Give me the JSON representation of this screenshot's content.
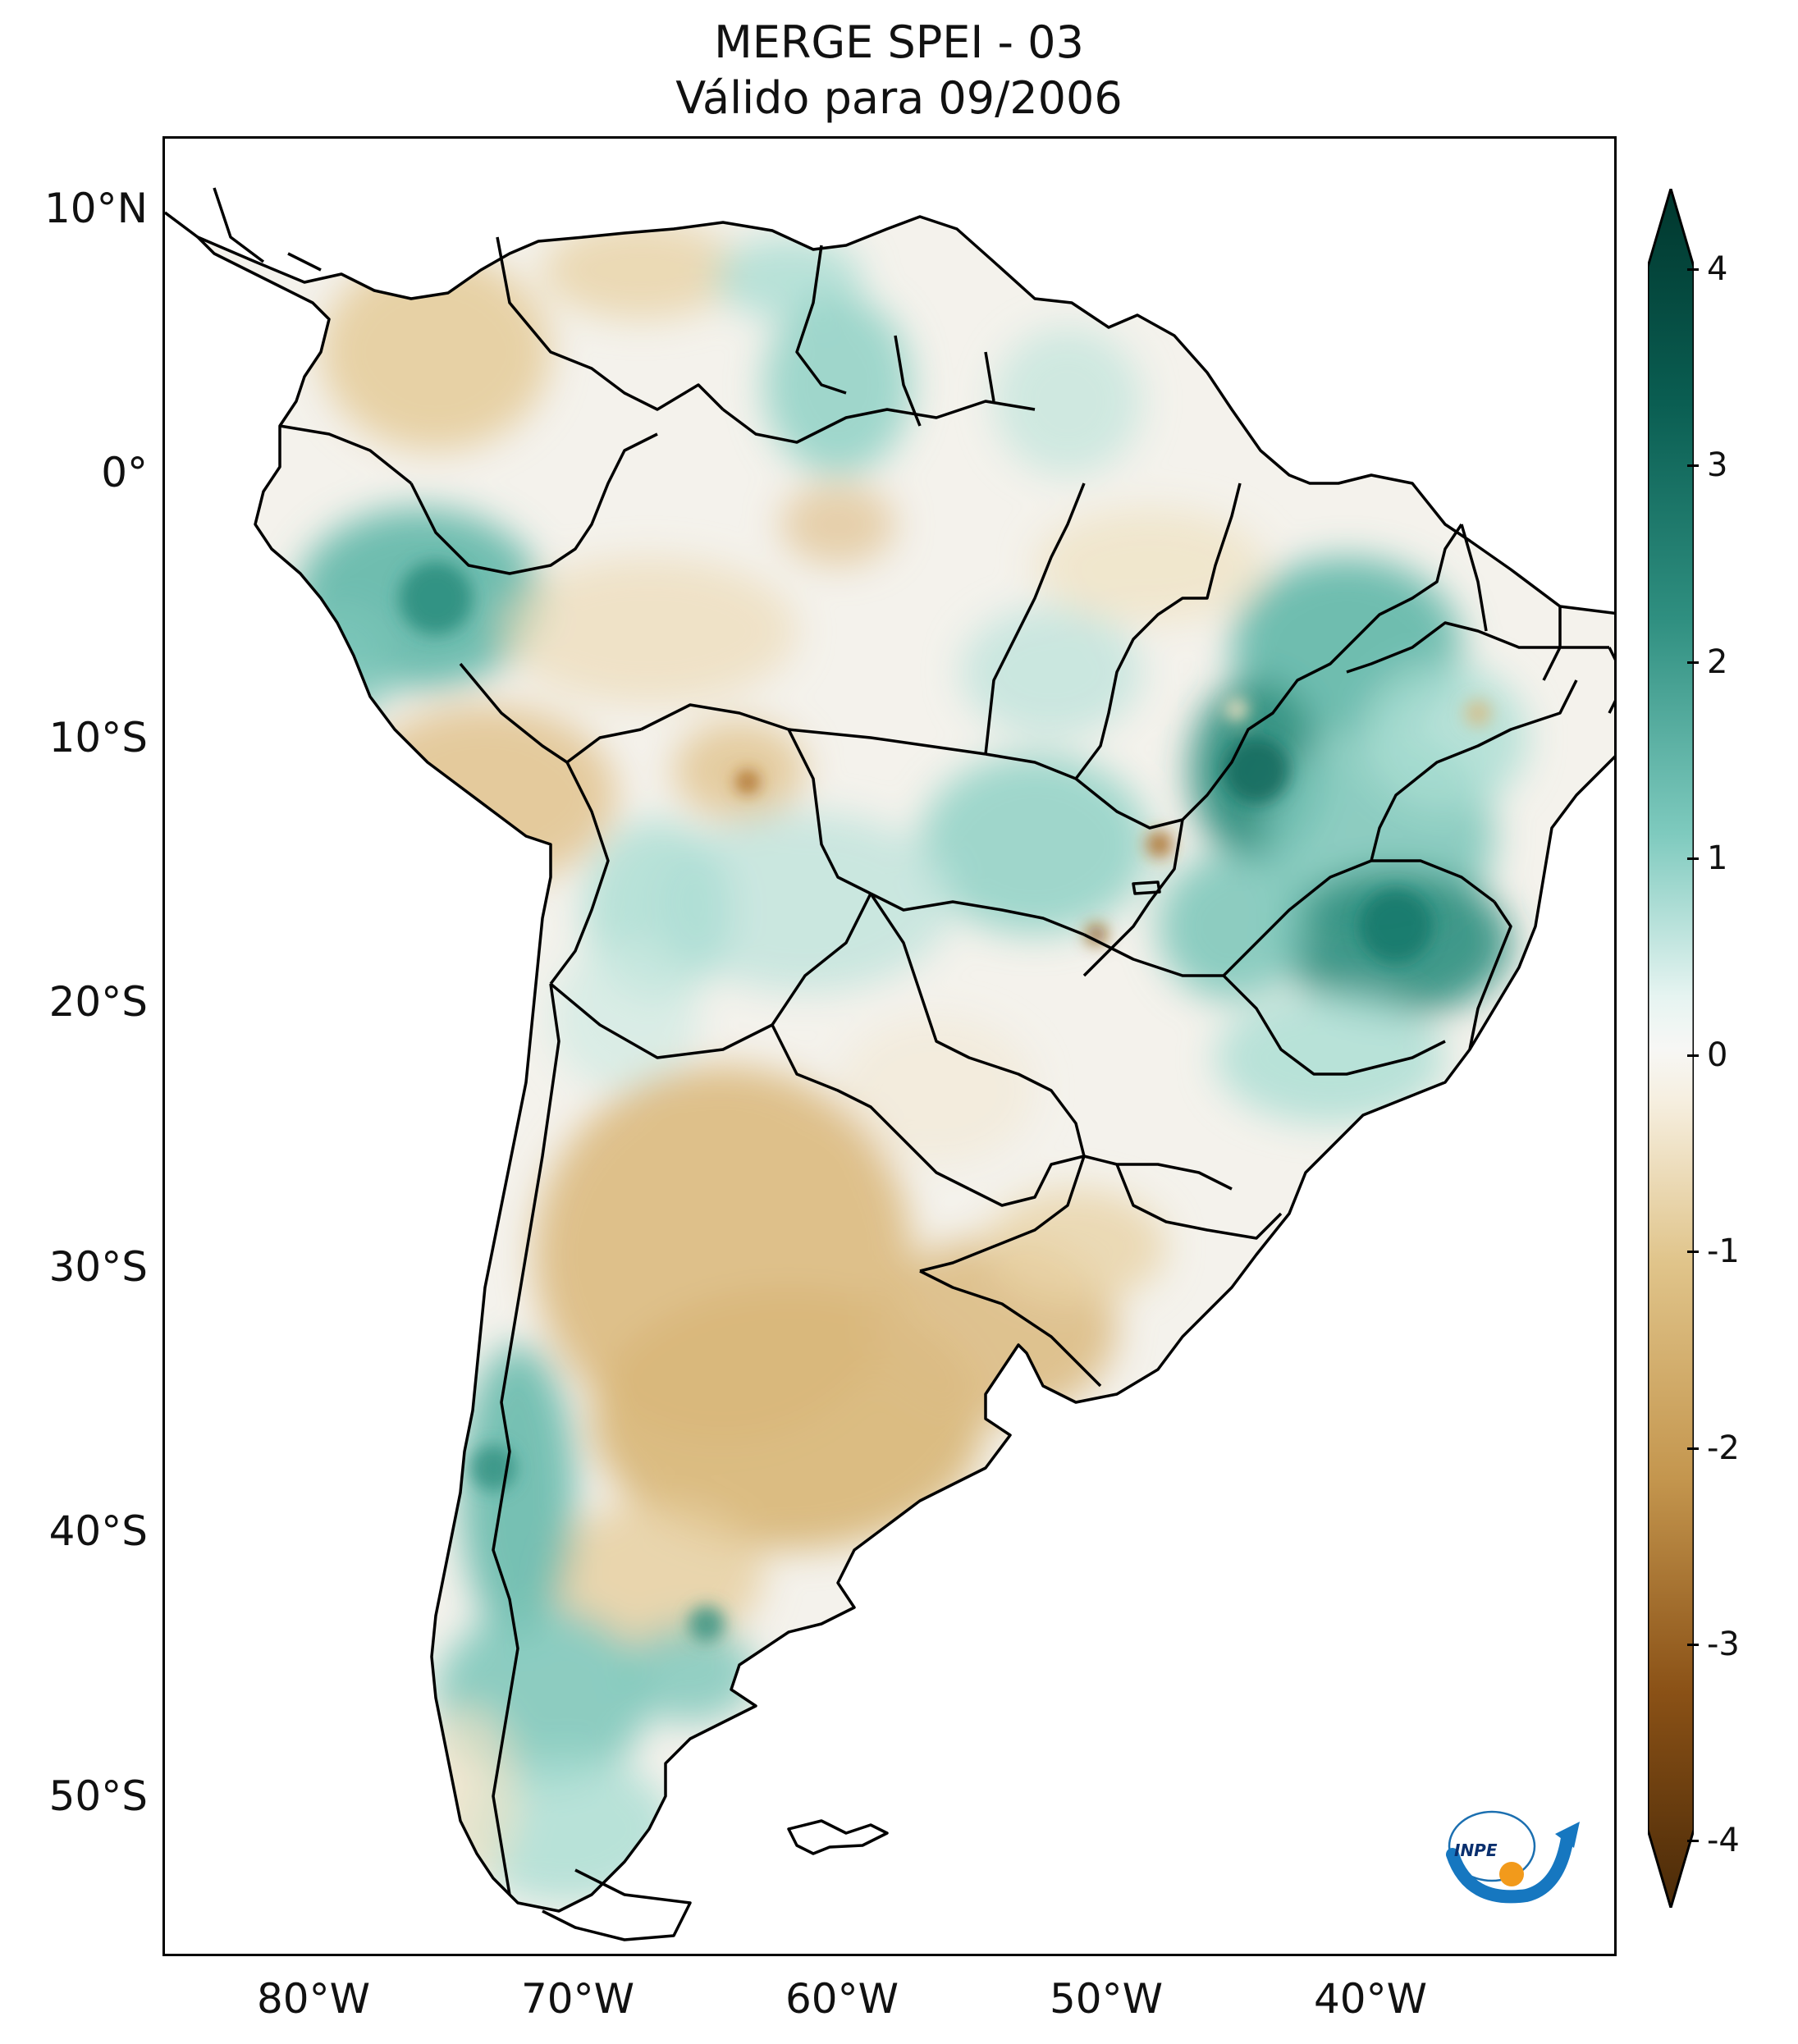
{
  "title": {
    "line1": "MERGE   SPEI - 03",
    "line2": "Válido para 09/2006"
  },
  "axes": {
    "lat_labels": [
      "10°N",
      "0°",
      "10°S",
      "20°S",
      "30°S",
      "40°S",
      "50°S"
    ],
    "lon_labels": [
      "80°W",
      "70°W",
      "60°W",
      "50°W",
      "40°W"
    ]
  },
  "colorbar": {
    "ticks": [
      "4",
      "3",
      "2",
      "1",
      "0",
      "-1",
      "-2",
      "-3",
      "-4"
    ],
    "colors": {
      "max": "#00362d",
      "high": "#1a7a6d",
      "mid_high": "#7ecabe",
      "neutral": "#f7f7f5",
      "mid_low": "#e0c48a",
      "low": "#a8661c",
      "min": "#4a2a08"
    }
  },
  "logo": {
    "text": "INPE"
  },
  "colors": {
    "land_dry": "#e9d2a3",
    "land_wet": "#6fbfb2",
    "coast": "#000000"
  }
}
